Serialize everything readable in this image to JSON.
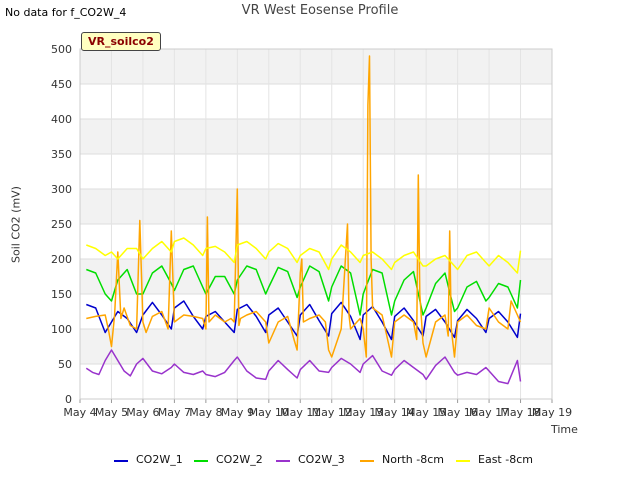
{
  "no_data_text": "No data for f_CO2W_4",
  "site_badge": "VR_soilco2",
  "chart_data": {
    "type": "line",
    "title": "VR West Eosense Profile",
    "xlabel": "Time",
    "ylabel": "Soil CO2 (mV)",
    "xlim": [
      4,
      19
    ],
    "ylim": [
      0,
      500
    ],
    "grid": true,
    "legend_position": "bottom",
    "xticks": [
      4,
      5,
      6,
      7,
      8,
      9,
      10,
      11,
      12,
      13,
      14,
      15,
      16,
      17,
      18,
      19
    ],
    "xtick_labels": [
      "May 4",
      "May 5",
      "May 6",
      "May 7",
      "May 8",
      "May 9",
      "May 10",
      "May 11",
      "May 12",
      "May 13",
      "May 14",
      "May 15",
      "May 16",
      "May 17",
      "May 18",
      "May 19"
    ],
    "yticks": [
      0,
      50,
      100,
      150,
      200,
      250,
      300,
      350,
      400,
      450,
      500
    ],
    "series": [
      {
        "name": "CO2W_1",
        "color": "#0000cc",
        "x": [
          4.2,
          4.5,
          4.8,
          5.0,
          5.2,
          5.5,
          5.8,
          6.0,
          6.3,
          6.6,
          6.9,
          7.0,
          7.3,
          7.6,
          7.9,
          8.0,
          8.3,
          8.6,
          8.9,
          9.0,
          9.3,
          9.6,
          9.9,
          10.0,
          10.3,
          10.6,
          10.9,
          11.0,
          11.3,
          11.6,
          11.9,
          12.0,
          12.3,
          12.6,
          12.9,
          13.0,
          13.3,
          13.6,
          13.9,
          14.0,
          14.3,
          14.6,
          14.9,
          15.0,
          15.3,
          15.6,
          15.9,
          16.0,
          16.3,
          16.6,
          16.9,
          17.0,
          17.3,
          17.6,
          17.9,
          18.0
        ],
        "values": [
          135,
          130,
          95,
          110,
          125,
          115,
          95,
          120,
          138,
          120,
          100,
          130,
          140,
          118,
          100,
          118,
          125,
          110,
          95,
          128,
          135,
          118,
          95,
          120,
          130,
          110,
          90,
          120,
          135,
          112,
          90,
          122,
          138,
          118,
          85,
          120,
          132,
          110,
          85,
          118,
          130,
          112,
          90,
          118,
          128,
          110,
          88,
          112,
          128,
          115,
          95,
          115,
          125,
          110,
          88,
          122
        ]
      },
      {
        "name": "CO2W_2",
        "color": "#00dd00",
        "x": [
          4.2,
          4.5,
          4.8,
          5.0,
          5.2,
          5.5,
          5.8,
          6.0,
          6.3,
          6.6,
          6.9,
          7.0,
          7.3,
          7.6,
          7.9,
          8.0,
          8.3,
          8.6,
          8.9,
          9.0,
          9.3,
          9.6,
          9.9,
          10.0,
          10.3,
          10.6,
          10.9,
          11.0,
          11.3,
          11.6,
          11.9,
          12.0,
          12.3,
          12.6,
          12.9,
          13.0,
          13.3,
          13.6,
          13.9,
          14.0,
          14.3,
          14.6,
          14.9,
          15.0,
          15.3,
          15.6,
          15.9,
          16.0,
          16.3,
          16.6,
          16.9,
          17.0,
          17.3,
          17.6,
          17.9,
          18.0
        ],
        "values": [
          185,
          180,
          150,
          140,
          170,
          185,
          150,
          150,
          180,
          190,
          165,
          155,
          185,
          190,
          160,
          150,
          175,
          175,
          150,
          170,
          190,
          185,
          150,
          160,
          188,
          182,
          145,
          160,
          190,
          182,
          140,
          160,
          190,
          180,
          120,
          150,
          185,
          180,
          120,
          140,
          170,
          182,
          120,
          130,
          165,
          180,
          125,
          130,
          160,
          168,
          140,
          145,
          165,
          160,
          130,
          170
        ]
      },
      {
        "name": "CO2W_3",
        "color": "#9933cc",
        "x": [
          4.2,
          4.4,
          4.6,
          4.8,
          5.0,
          5.2,
          5.4,
          5.6,
          5.8,
          6.0,
          6.3,
          6.6,
          6.9,
          7.0,
          7.3,
          7.6,
          7.9,
          8.0,
          8.3,
          8.6,
          8.9,
          9.0,
          9.3,
          9.6,
          9.9,
          10.0,
          10.3,
          10.6,
          10.9,
          11.0,
          11.3,
          11.6,
          11.9,
          12.0,
          12.3,
          12.6,
          12.9,
          13.0,
          13.3,
          13.6,
          13.9,
          14.0,
          14.3,
          14.6,
          14.9,
          15.0,
          15.3,
          15.6,
          15.9,
          16.0,
          16.3,
          16.6,
          16.9,
          17.0,
          17.3,
          17.6,
          17.9,
          18.0
        ],
        "values": [
          44,
          38,
          35,
          55,
          70,
          55,
          40,
          33,
          50,
          58,
          40,
          36,
          45,
          50,
          38,
          35,
          40,
          35,
          32,
          38,
          55,
          60,
          40,
          30,
          28,
          40,
          55,
          42,
          30,
          42,
          55,
          40,
          38,
          45,
          58,
          50,
          38,
          50,
          62,
          40,
          34,
          42,
          55,
          45,
          35,
          28,
          48,
          60,
          38,
          34,
          38,
          35,
          45,
          40,
          25,
          22,
          55,
          25
        ]
      },
      {
        "name": "North -8cm",
        "color": "#ffa500",
        "x": [
          4.2,
          4.5,
          4.8,
          4.9,
          5.0,
          5.1,
          5.2,
          5.3,
          5.4,
          5.6,
          5.8,
          5.9,
          6.0,
          6.1,
          6.3,
          6.6,
          6.8,
          6.9,
          7.0,
          7.3,
          7.6,
          7.9,
          8.0,
          8.05,
          8.1,
          8.3,
          8.6,
          8.8,
          8.9,
          9.0,
          9.05,
          9.1,
          9.3,
          9.6,
          9.9,
          10.0,
          10.3,
          10.6,
          10.8,
          10.9,
          11.0,
          11.05,
          11.1,
          11.3,
          11.6,
          11.8,
          11.9,
          12.0,
          12.3,
          12.5,
          12.55,
          12.6,
          12.9,
          13.0,
          13.1,
          13.15,
          13.2,
          13.25,
          13.3,
          13.6,
          13.8,
          13.9,
          14.0,
          14.3,
          14.6,
          14.7,
          14.75,
          14.8,
          14.9,
          15.0,
          15.3,
          15.6,
          15.7,
          15.75,
          15.8,
          15.9,
          16.0,
          16.3,
          16.6,
          16.9,
          17.0,
          17.3,
          17.6,
          17.7,
          17.9,
          18.0
        ],
        "values": [
          115,
          118,
          120,
          100,
          75,
          120,
          210,
          115,
          130,
          105,
          100,
          255,
          110,
          95,
          118,
          125,
          100,
          240,
          110,
          120,
          118,
          115,
          100,
          260,
          110,
          120,
          110,
          115,
          110,
          300,
          105,
          115,
          120,
          125,
          110,
          80,
          110,
          118,
          85,
          70,
          180,
          200,
          110,
          115,
          120,
          110,
          70,
          60,
          100,
          250,
          120,
          100,
          115,
          100,
          60,
          420,
          490,
          200,
          130,
          120,
          80,
          60,
          110,
          120,
          110,
          85,
          320,
          150,
          80,
          60,
          110,
          120,
          90,
          240,
          100,
          60,
          110,
          120,
          105,
          100,
          130,
          110,
          100,
          140,
          120,
          110
        ]
      },
      {
        "name": "East -8cm",
        "color": "#ffff00",
        "x": [
          4.2,
          4.5,
          4.8,
          5.0,
          5.2,
          5.5,
          5.8,
          6.0,
          6.3,
          6.6,
          6.9,
          7.0,
          7.3,
          7.6,
          7.9,
          8.0,
          8.3,
          8.6,
          8.9,
          9.0,
          9.3,
          9.6,
          9.9,
          10.0,
          10.3,
          10.6,
          10.9,
          11.0,
          11.3,
          11.6,
          11.9,
          12.0,
          12.3,
          12.6,
          12.9,
          13.0,
          13.3,
          13.6,
          13.9,
          14.0,
          14.3,
          14.6,
          14.9,
          15.0,
          15.3,
          15.6,
          15.9,
          16.0,
          16.3,
          16.6,
          16.9,
          17.0,
          17.3,
          17.6,
          17.9,
          18.0
        ],
        "values": [
          220,
          215,
          205,
          210,
          200,
          215,
          215,
          200,
          215,
          225,
          210,
          225,
          230,
          220,
          205,
          215,
          218,
          210,
          195,
          220,
          225,
          215,
          200,
          210,
          222,
          215,
          195,
          205,
          215,
          210,
          185,
          200,
          220,
          210,
          195,
          205,
          210,
          200,
          185,
          195,
          205,
          210,
          190,
          190,
          200,
          205,
          190,
          185,
          205,
          210,
          195,
          190,
          205,
          195,
          180,
          212
        ]
      }
    ]
  }
}
